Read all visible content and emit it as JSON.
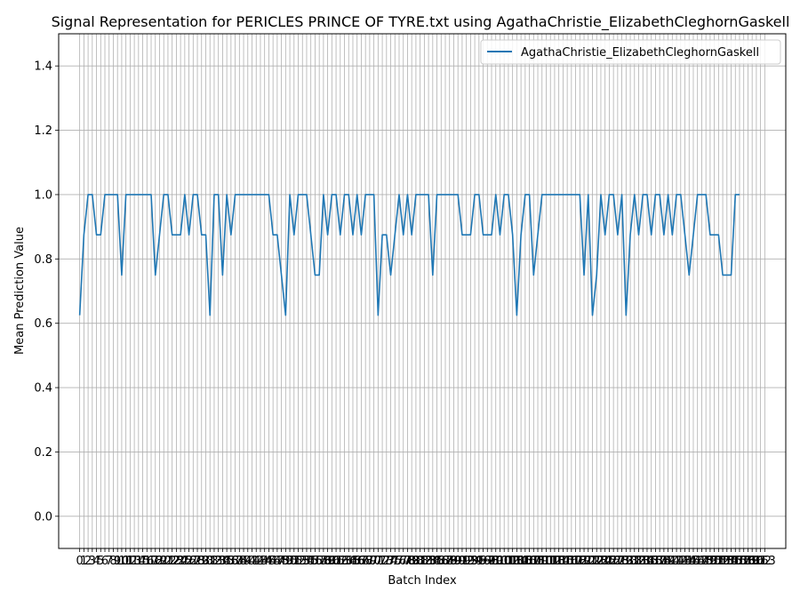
{
  "chart_data": {
    "type": "line",
    "title": "Signal Representation for PERICLES PRINCE OF TYRE.txt using AgathaChristie_ElizabethCleghornGaskell",
    "xlabel": "Batch Index",
    "ylabel": "Mean Prediction Value",
    "xlim": [
      -5,
      168
    ],
    "ylim": [
      -0.1,
      1.5
    ],
    "yticks": [
      0.0,
      0.2,
      0.4,
      0.6,
      0.8,
      1.0,
      1.2,
      1.4
    ],
    "x_tick_start": 0,
    "x_tick_end": 163,
    "grid": true,
    "legend_position": "top-right",
    "series": [
      {
        "name": "AgathaChristie_ElizabethCleghornGaskell",
        "color": "#1f77b4",
        "values": [
          0.625,
          0.875,
          1,
          1,
          0.875,
          0.875,
          1,
          1,
          1,
          1,
          0.75,
          1,
          1,
          1,
          1,
          1,
          1,
          1,
          0.75,
          0.875,
          1,
          1,
          0.875,
          0.875,
          0.875,
          1,
          0.875,
          1,
          1,
          0.875,
          0.875,
          0.625,
          1,
          1,
          0.75,
          1,
          0.875,
          1,
          1,
          1,
          1,
          1,
          1,
          1,
          1,
          1,
          0.875,
          0.875,
          0.75,
          0.625,
          1,
          0.875,
          1,
          1,
          1,
          0.875,
          0.75,
          0.75,
          1,
          0.875,
          1,
          1,
          0.875,
          1,
          1,
          0.875,
          1,
          0.875,
          1,
          1,
          1,
          0.625,
          0.875,
          0.875,
          0.75,
          0.875,
          1,
          0.875,
          1,
          0.875,
          1,
          1,
          1,
          1,
          0.75,
          1,
          1,
          1,
          1,
          1,
          1,
          0.875,
          0.875,
          0.875,
          1,
          1,
          0.875,
          0.875,
          0.875,
          1,
          0.875,
          1,
          1,
          0.875,
          0.625,
          0.875,
          1,
          1,
          0.75,
          0.875,
          1,
          1,
          1,
          1,
          1,
          1,
          1,
          1,
          1,
          1,
          0.75,
          1,
          0.625,
          0.75,
          1,
          0.875,
          1,
          1,
          0.875,
          1,
          0.625,
          0.875,
          1,
          0.875,
          1,
          1,
          0.875,
          1,
          1,
          0.875,
          1,
          0.875,
          1,
          1,
          0.875,
          0.75,
          0.875,
          1,
          1,
          1,
          0.875,
          0.875,
          0.875,
          0.75,
          0.75,
          0.75,
          1,
          1
        ]
      }
    ]
  }
}
